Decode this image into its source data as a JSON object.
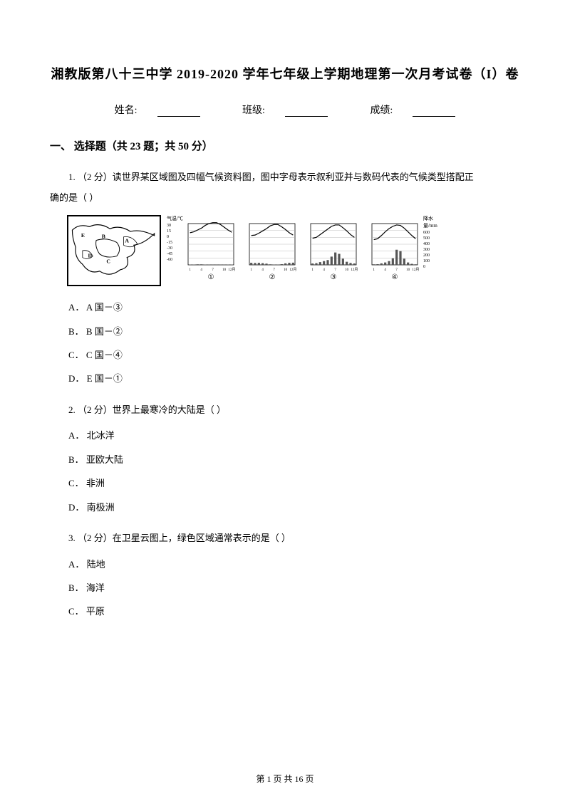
{
  "title": "湘教版第八十三中学 2019-2020 学年七年级上学期地理第一次月考试卷（I）卷",
  "info": {
    "name_label": "姓名:",
    "class_label": "班级:",
    "score_label": "成绩:"
  },
  "section1": {
    "heading": "一、 选择题（共 23 题；共 50 分）"
  },
  "q1": {
    "stem_a": "1. （2 分）读世界某区域图及四幅气候资料图，图中字母表示叙利亚并与数码代表的气候类型搭配正",
    "stem_b": "确的是（    ）",
    "options": {
      "A": "A． A 国－③",
      "B": "B． B 国－②",
      "C": "C． C 国－④",
      "D": "D． E 国－①"
    },
    "figure": {
      "temp_axis": "气温/℃",
      "rain_axis": "降水量/mm",
      "temp_ticks": [
        "30",
        "15",
        "0",
        "-15",
        "-30",
        "-45",
        "-60"
      ],
      "rain_ticks": [
        "600",
        "500",
        "400",
        "300",
        "200",
        "100",
        "0"
      ],
      "month_ticks": [
        "1",
        "4",
        "7",
        "10",
        "12月"
      ],
      "circled": [
        "①",
        "②",
        "③",
        "④"
      ],
      "chart_colors": {
        "line": "#000000",
        "bar": "#555555",
        "grid": "#999999",
        "border": "#000000"
      },
      "c1": {
        "temps": [
          10,
          12,
          16,
          20,
          26,
          30,
          32,
          32,
          28,
          22,
          16,
          11
        ],
        "rain": [
          5,
          5,
          8,
          8,
          5,
          3,
          2,
          2,
          3,
          3,
          5,
          5
        ]
      },
      "c2": {
        "temps": [
          4,
          5,
          9,
          14,
          19,
          25,
          28,
          28,
          23,
          17,
          10,
          5
        ],
        "rain": [
          30,
          28,
          30,
          25,
          18,
          8,
          4,
          4,
          10,
          22,
          30,
          32
        ]
      },
      "c3": {
        "temps": [
          -2,
          0,
          6,
          12,
          18,
          24,
          27,
          27,
          21,
          14,
          6,
          0
        ],
        "rain": [
          20,
          25,
          40,
          55,
          70,
          120,
          180,
          160,
          90,
          45,
          28,
          20
        ]
      },
      "c4": {
        "temps": [
          -5,
          -3,
          4,
          12,
          19,
          24,
          27,
          26,
          20,
          12,
          4,
          -3
        ],
        "rain": [
          8,
          10,
          22,
          35,
          55,
          95,
          220,
          200,
          90,
          35,
          15,
          8
        ]
      }
    }
  },
  "q2": {
    "stem": "2. （2 分）世界上最寒冷的大陆是（    ）",
    "options": {
      "A": "A． 北冰洋",
      "B": "B． 亚欧大陆",
      "C": "C． 非洲",
      "D": "D． 南极洲"
    }
  },
  "q3": {
    "stem": "3. （2 分）在卫星云图上，绿色区域通常表示的是（    ）",
    "options": {
      "A": "A． 陆地",
      "B": "B． 海洋",
      "C": "C． 平原"
    }
  },
  "footer": "第 1 页 共 16 页"
}
